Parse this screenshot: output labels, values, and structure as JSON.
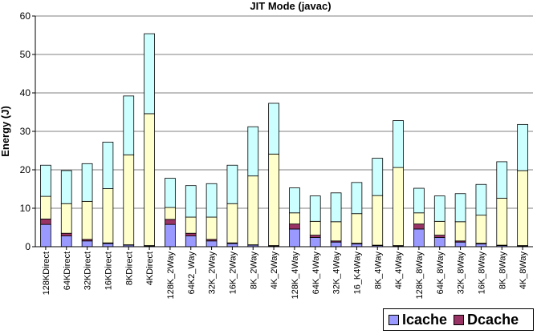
{
  "chart_data": {
    "type": "bar",
    "stacked": true,
    "title": "JIT Mode (javac)",
    "ylabel": "Energy (J)",
    "xlabel": "",
    "ylim": [
      0,
      60
    ],
    "yticks": [
      0,
      10,
      20,
      30,
      40,
      50,
      60
    ],
    "grid": true,
    "legend_position": "bottom-right",
    "categories": [
      "128KDirect",
      "64KDirect",
      "32KDirect",
      "16KDirect",
      "8KDirect",
      "4KDirect",
      "128K_2Way",
      "64K2_Way",
      "32K_2Way",
      "16K_2Way",
      "8K_2Way",
      "4K_2Way",
      "128K_4Way",
      "64K_4Way",
      "32K_4Way",
      "16_K4Way",
      "8K_4Way",
      "4K_4Way",
      "128K_8Way",
      "64K_8Way",
      "32K_8Way",
      "16K_8Way",
      "8K_8Way",
      "4K_8Way"
    ],
    "series": [
      {
        "name": "Icache",
        "color": "#9999ff",
        "values": [
          5.8,
          2.8,
          1.5,
          0.8,
          0.4,
          0.2,
          5.8,
          2.8,
          1.5,
          0.8,
          0.4,
          0.2,
          4.6,
          2.4,
          1.2,
          0.7,
          0.3,
          0.2,
          4.6,
          2.4,
          1.2,
          0.7,
          0.3,
          0.2
        ]
      },
      {
        "name": "Dcache",
        "color": "#993366",
        "values": [
          1.4,
          0.7,
          0.4,
          0.2,
          0.1,
          0.1,
          1.3,
          0.7,
          0.4,
          0.2,
          0.1,
          0.1,
          1.3,
          0.6,
          0.3,
          0.2,
          0.1,
          0.1,
          1.3,
          0.6,
          0.3,
          0.2,
          0.1,
          0.1
        ]
      },
      {
        "color": "#ffffcc",
        "values": [
          5.9,
          7.7,
          9.9,
          14.1,
          23.4,
          34.3,
          3.1,
          4.2,
          5.8,
          10.2,
          17.9,
          23.8,
          2.9,
          3.6,
          5.0,
          7.7,
          12.9,
          20.3,
          2.9,
          3.6,
          5.0,
          7.3,
          12.2,
          19.5
        ]
      },
      {
        "color": "#ccffff",
        "values": [
          8.1,
          8.6,
          9.8,
          12.1,
          15.3,
          20.8,
          7.6,
          8.2,
          8.7,
          10.0,
          12.8,
          13.2,
          6.5,
          6.6,
          7.5,
          8.1,
          9.7,
          12.2,
          6.4,
          6.6,
          7.3,
          8.0,
          9.5,
          12.0
        ]
      }
    ]
  }
}
